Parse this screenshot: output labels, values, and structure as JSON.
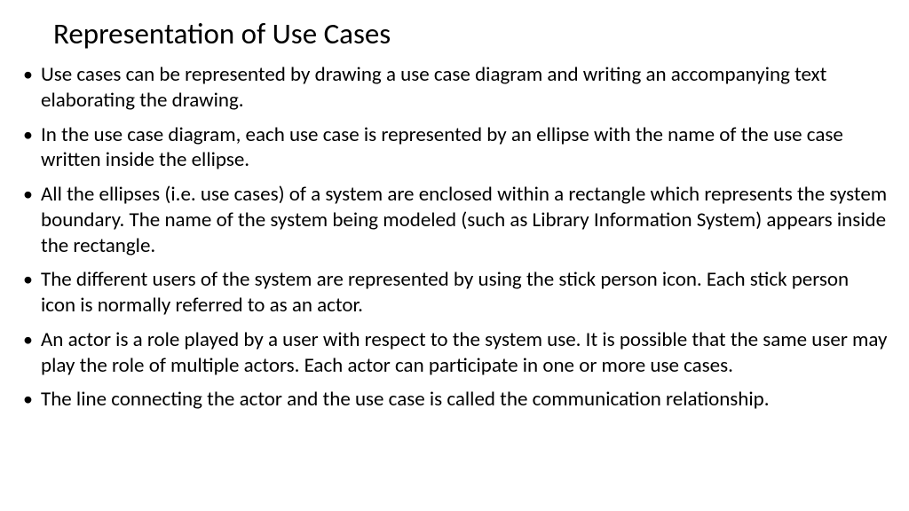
{
  "slide": {
    "title": "Representation of Use Cases",
    "bullets": [
      "Use cases can be represented by drawing a use case diagram and writing an accompanying text elaborating the drawing.",
      "In the use case diagram, each use case is represented by an ellipse with the name of the use case written inside the ellipse.",
      "All the ellipses (i.e. use cases) of a system are enclosed within a rectangle which represents the system boundary. The name of the system being modeled (such as Library Information System) appears inside the rectangle.",
      "The different users of the system are represented by using the stick person icon. Each stick person icon is normally referred to as an actor.",
      "An actor is a role played by a user with respect to the system use. It is possible that the same user may play the role of multiple actors. Each actor can participate in one or more use cases.",
      "The line connecting the actor and the use case is called the communication relationship."
    ],
    "styling": {
      "background_color": "#ffffff",
      "text_color": "#000000",
      "title_fontsize": 33,
      "body_fontsize": 23,
      "font_family": "Calibri",
      "bullet_char": "•",
      "line_height": 1.25
    }
  }
}
